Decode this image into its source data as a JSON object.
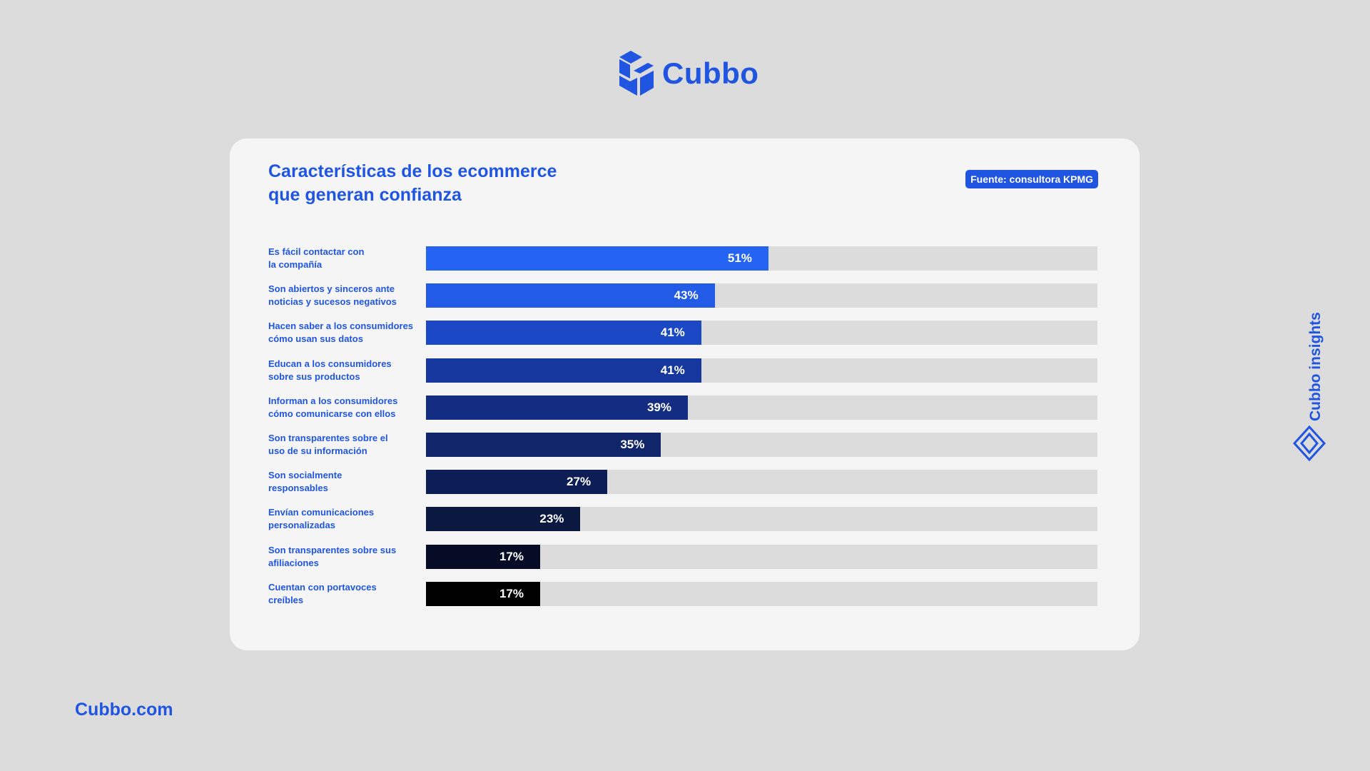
{
  "brand": {
    "name": "Cubbo",
    "website": "Cubbo.com",
    "side_label": "Cubbo insights",
    "primary_color": "#1f55e0",
    "logo_icon": "cube-icon",
    "side_icon": "diamond-icon"
  },
  "chart_data": {
    "type": "bar",
    "orientation": "horizontal",
    "title_lines": [
      "Características de los ecommerce",
      "que generan confianza"
    ],
    "source": "Fuente: consultora KPMG",
    "xlim": [
      0,
      100
    ],
    "grid": false,
    "categories": [
      [
        "Es fácil contactar con",
        "la compañía"
      ],
      [
        "Son abiertos y sinceros ante",
        "noticias y sucesos negativos"
      ],
      [
        "Hacen saber a los consumidores",
        "cómo usan sus datos"
      ],
      [
        "Educan a los consumidores",
        "sobre sus productos"
      ],
      [
        "Informan a los consumidores",
        "cómo comunicarse con ellos"
      ],
      [
        "Son transparentes sobre el",
        "uso de su información"
      ],
      [
        "Son socialmente",
        "responsables"
      ],
      [
        "Envían comunicaciones",
        "personalizadas"
      ],
      [
        "Son transparentes sobre sus",
        "afiliaciones"
      ],
      [
        "Cuentan con portavoces",
        "creíbles"
      ]
    ],
    "values": [
      51,
      43,
      41,
      41,
      39,
      35,
      27,
      23,
      17,
      17
    ],
    "value_labels": [
      "51%",
      "43%",
      "41%",
      "41%",
      "39%",
      "35%",
      "27%",
      "23%",
      "17%",
      "17%"
    ],
    "bar_colors": [
      "#2563f2",
      "#215be6",
      "#1b49c6",
      "#16379e",
      "#132d82",
      "#10256a",
      "#0d1d56",
      "#0b1840",
      "#060c26",
      "#000000"
    ],
    "track_color": "#dcdcdc"
  }
}
